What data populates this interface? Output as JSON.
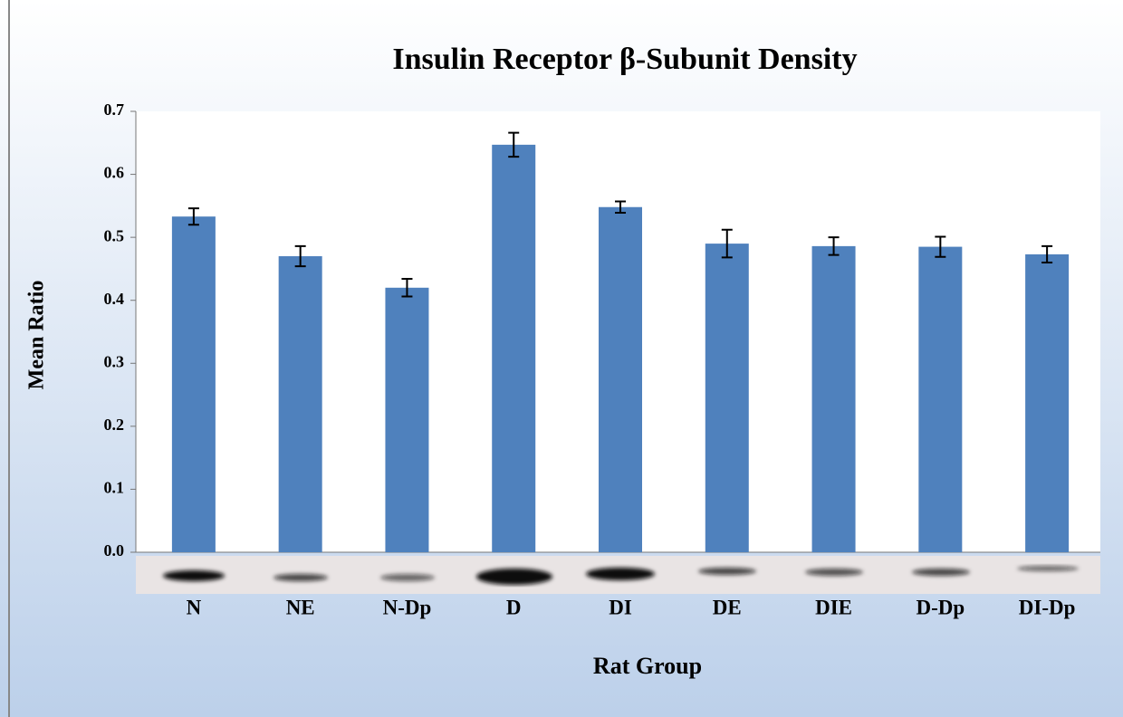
{
  "chart_data": {
    "type": "bar",
    "title": "Insulin Receptor β-Subunit  Density",
    "y_label": "Mean Ratio",
    "x_label": "Rat Group",
    "categories": [
      "N",
      "NE",
      "N-Dp",
      "D",
      "DI",
      "DE",
      "DIE",
      "D-Dp",
      "DI-Dp"
    ],
    "values": [
      0.533,
      0.47,
      0.42,
      0.647,
      0.548,
      0.49,
      0.486,
      0.485,
      0.473
    ],
    "errors": [
      0.013,
      0.016,
      0.014,
      0.019,
      0.009,
      0.022,
      0.014,
      0.016,
      0.013
    ],
    "color": "#4f81bd",
    "ylim": [
      0,
      0.7
    ],
    "yticks": [
      {
        "value": 0,
        "label": "0.0"
      },
      0.1,
      0.2,
      0.3,
      0.4,
      0.5,
      0.6,
      0.7
    ],
    "grid": false
  }
}
